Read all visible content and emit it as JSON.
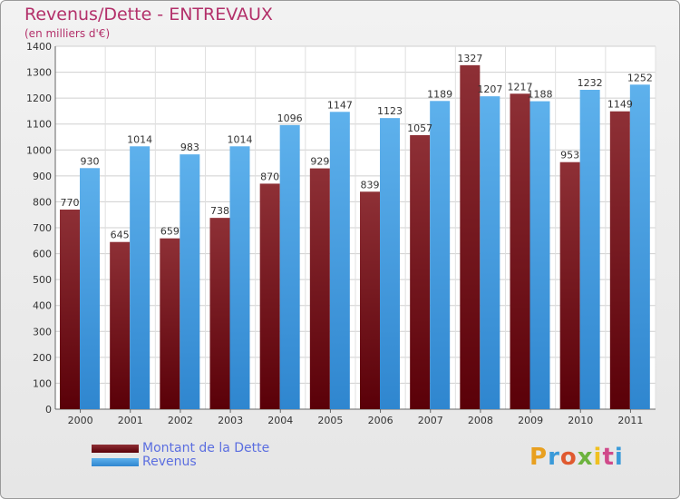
{
  "title": "Revenus/Dette - ENTREVAUX",
  "subtitle": "(en milliers d'€)",
  "logo": "Proxiti",
  "colors": {
    "dette": "#7a1d24",
    "revenus": "#4aa3e6",
    "title": "#b3306a",
    "legend_text": "#5b6ee0"
  },
  "chart_data": {
    "type": "bar",
    "categories": [
      "2000",
      "2001",
      "2002",
      "2003",
      "2004",
      "2005",
      "2006",
      "2007",
      "2008",
      "2009",
      "2010",
      "2011"
    ],
    "series": [
      {
        "name": "Montant de la Dette",
        "values": [
          770,
          645,
          659,
          738,
          870,
          929,
          839,
          1057,
          1327,
          1217,
          953,
          1149
        ]
      },
      {
        "name": "Revenus",
        "values": [
          930,
          1014,
          983,
          1014,
          1096,
          1147,
          1123,
          1189,
          1207,
          1188,
          1232,
          1252
        ]
      }
    ],
    "ylim": [
      0,
      1400
    ],
    "yticks": [
      0,
      100,
      200,
      300,
      400,
      500,
      600,
      700,
      800,
      900,
      1000,
      1100,
      1200,
      1300,
      1400
    ],
    "grid": true,
    "legend_position": "bottom-left"
  }
}
